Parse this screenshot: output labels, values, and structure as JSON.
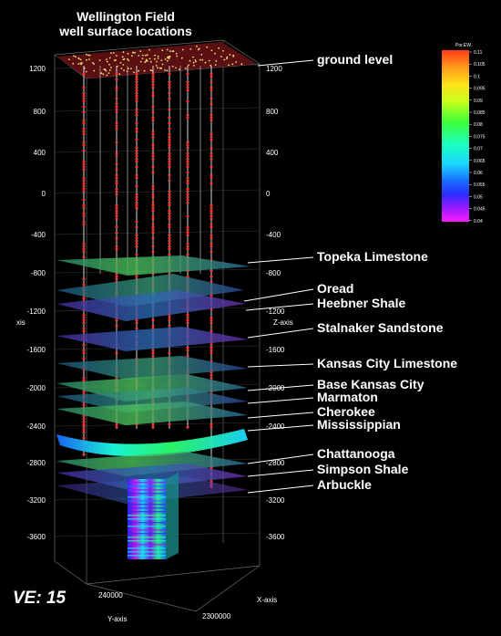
{
  "title": {
    "line1": "Wellington Field",
    "line2": "well surface locations"
  },
  "colorbar": {
    "title": "Por.EW.",
    "ticks": [
      "0.11",
      "0.105",
      "0.1",
      "0.095",
      "0.09",
      "0.085",
      "0.08",
      "0.075",
      "0.07",
      "0.065",
      "0.06",
      "0.055",
      "0.05",
      "0.045",
      "0.04"
    ],
    "colors": [
      "#ff3b1a",
      "#ff8c1a",
      "#ffd21a",
      "#e8ff1a",
      "#9cff1a",
      "#2bff3a",
      "#1affb0",
      "#1ae8ff",
      "#1a8cff",
      "#2b2bff",
      "#8c1aff",
      "#d21aff",
      "#ff1aff"
    ]
  },
  "axes": {
    "left_ticks": [
      "1200",
      "800",
      "400",
      "0",
      "-400",
      "-800",
      "-1200",
      "-1600",
      "-2000",
      "-2400",
      "-2800",
      "-3200",
      "-3600"
    ],
    "right_ticks": [
      "1200",
      "800",
      "400",
      "0",
      "-400",
      "-800",
      "-1200",
      "-1600",
      "-2000",
      "-2400",
      "-2800",
      "-3200",
      "-3600"
    ],
    "left_axis_label": "xis",
    "z_axis_label": "Z-axis",
    "y_axis_label": "Y-axis",
    "x_axis_label": "X-axis",
    "y_tick": "240000",
    "x_tick": "2300000"
  },
  "horizons": [
    "ground level",
    "Topeka Limestone",
    "Oread",
    "Heebner Shale",
    "Stalnaker Sandstone",
    "Kansas City Limestone",
    "Base Kansas City",
    "Marmaton",
    "Cherokee",
    "Mississippian",
    "Chattanooga",
    "Simpson Shale",
    "Arbuckle"
  ],
  "vertical_exaggeration": "VE: 15",
  "colors": {
    "background": "#000000",
    "well_trace": "#ff2a2a",
    "ground_surface": "#5a0f12",
    "well_dots": "#f0e070"
  }
}
